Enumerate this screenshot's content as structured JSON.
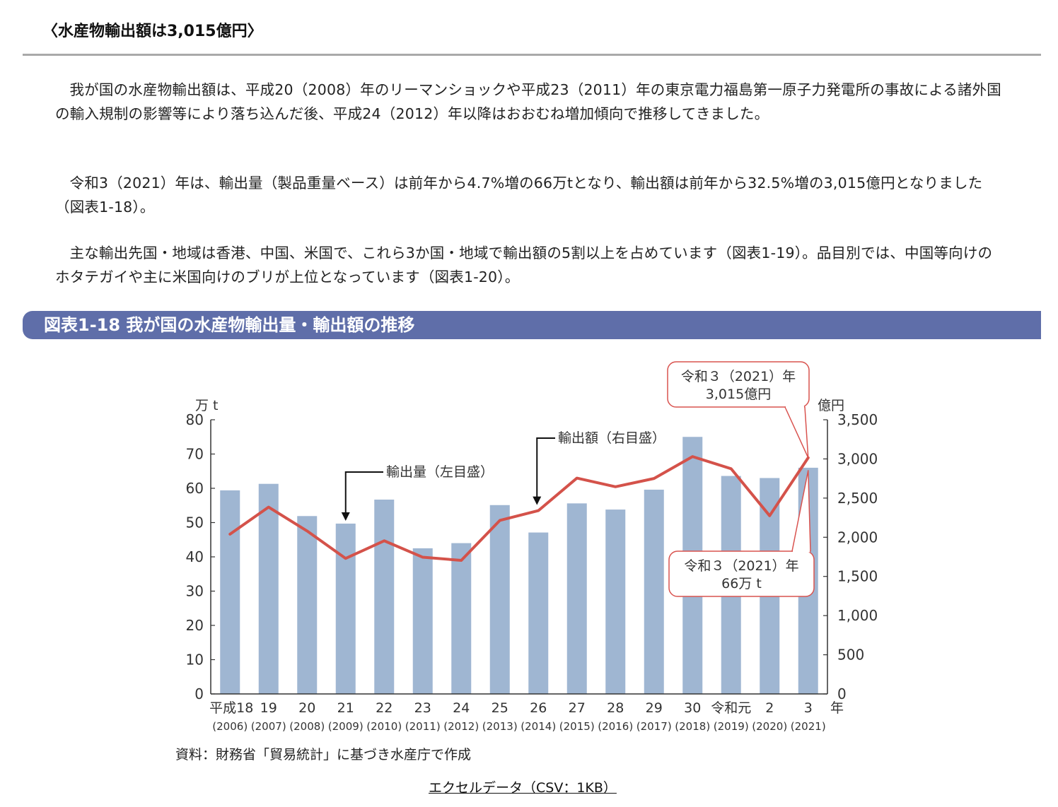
{
  "section_title": "〈水産物輸出額は3,015億円〉",
  "paragraphs": [
    "我が国の水産物輸出額は、平成20（2008）年のリーマンショックや平成23（2011）年の東京電力福島第一原子力発電所の事故による諸外国の輸入規制の影響等により落ち込んだ後、平成24（2012）年以降はおおむね増加傾向で推移してきました。",
    "令和3（2021）年は、輸出量（製品重量ベース）は前年から4.7%増の66万tとなり、輸出額は前年から32.5%増の3,015億円となりました（図表1-18）。",
    "主な輸出先国・地域は香港、中国、米国で、これら3か国・地域で輸出額の5割以上を占めています（図表1-19）。品目別では、中国等向けのホタテガイや主に米国向けのブリが上位となっています（図表1-20）。"
  ],
  "figure_title": "図表1-18 我が国の水産物輸出量・輸出額の推移",
  "source_note": "資料：財務省「貿易統計」に基づき水産庁で作成",
  "csv_link": "エクセルデータ（CSV：1KB）",
  "colors": {
    "bar": "#9fb6d2",
    "line": "#d4524a",
    "banner": "#5f6ea9",
    "callout": "#d9534f"
  },
  "chart_data": {
    "type": "bar+line",
    "categories": [
      "平成18",
      "19",
      "20",
      "21",
      "22",
      "23",
      "24",
      "25",
      "26",
      "27",
      "28",
      "29",
      "30",
      "令和元",
      "2",
      "3"
    ],
    "categories_western": [
      "(2006)",
      "(2007)",
      "(2008)",
      "(2009)",
      "(2010)",
      "(2011)",
      "(2012)",
      "(2013)",
      "(2014)",
      "(2015)",
      "(2016)",
      "(2017)",
      "(2018)",
      "(2019)",
      "(2020)",
      "(2021)"
    ],
    "x_unit": "年",
    "left_axis": {
      "unit": "万 t",
      "ylim": [
        0,
        80
      ],
      "ticks": [
        "0",
        "10",
        "20",
        "30",
        "40",
        "50",
        "60",
        "70",
        "80"
      ]
    },
    "right_axis": {
      "unit": "億円",
      "ylim": [
        0,
        3500
      ],
      "ticks": [
        "0",
        "500",
        "1,000",
        "1,500",
        "2,000",
        "2,500",
        "3,000",
        "3,500"
      ]
    },
    "series": [
      {
        "name": "輸出量（左目盛）",
        "type": "bar",
        "axis": "left",
        "values": [
          59.4,
          61.3,
          51.9,
          49.7,
          56.7,
          42.5,
          44.0,
          55.1,
          47.1,
          55.6,
          53.8,
          59.6,
          75.0,
          63.6,
          63.0,
          66.0
        ]
      },
      {
        "name": "輸出額（右目盛）",
        "type": "line",
        "axis": "right",
        "values": [
          2040,
          2385,
          2080,
          1730,
          1955,
          1745,
          1705,
          2215,
          2340,
          2755,
          2645,
          2750,
          3030,
          2875,
          2275,
          3015
        ]
      }
    ],
    "annotations": [
      {
        "line1": "令和３（2021）年",
        "line2": "3,015億円"
      },
      {
        "line1": "令和３（2021）年",
        "line2": "66万 t"
      }
    ],
    "grid": false
  }
}
